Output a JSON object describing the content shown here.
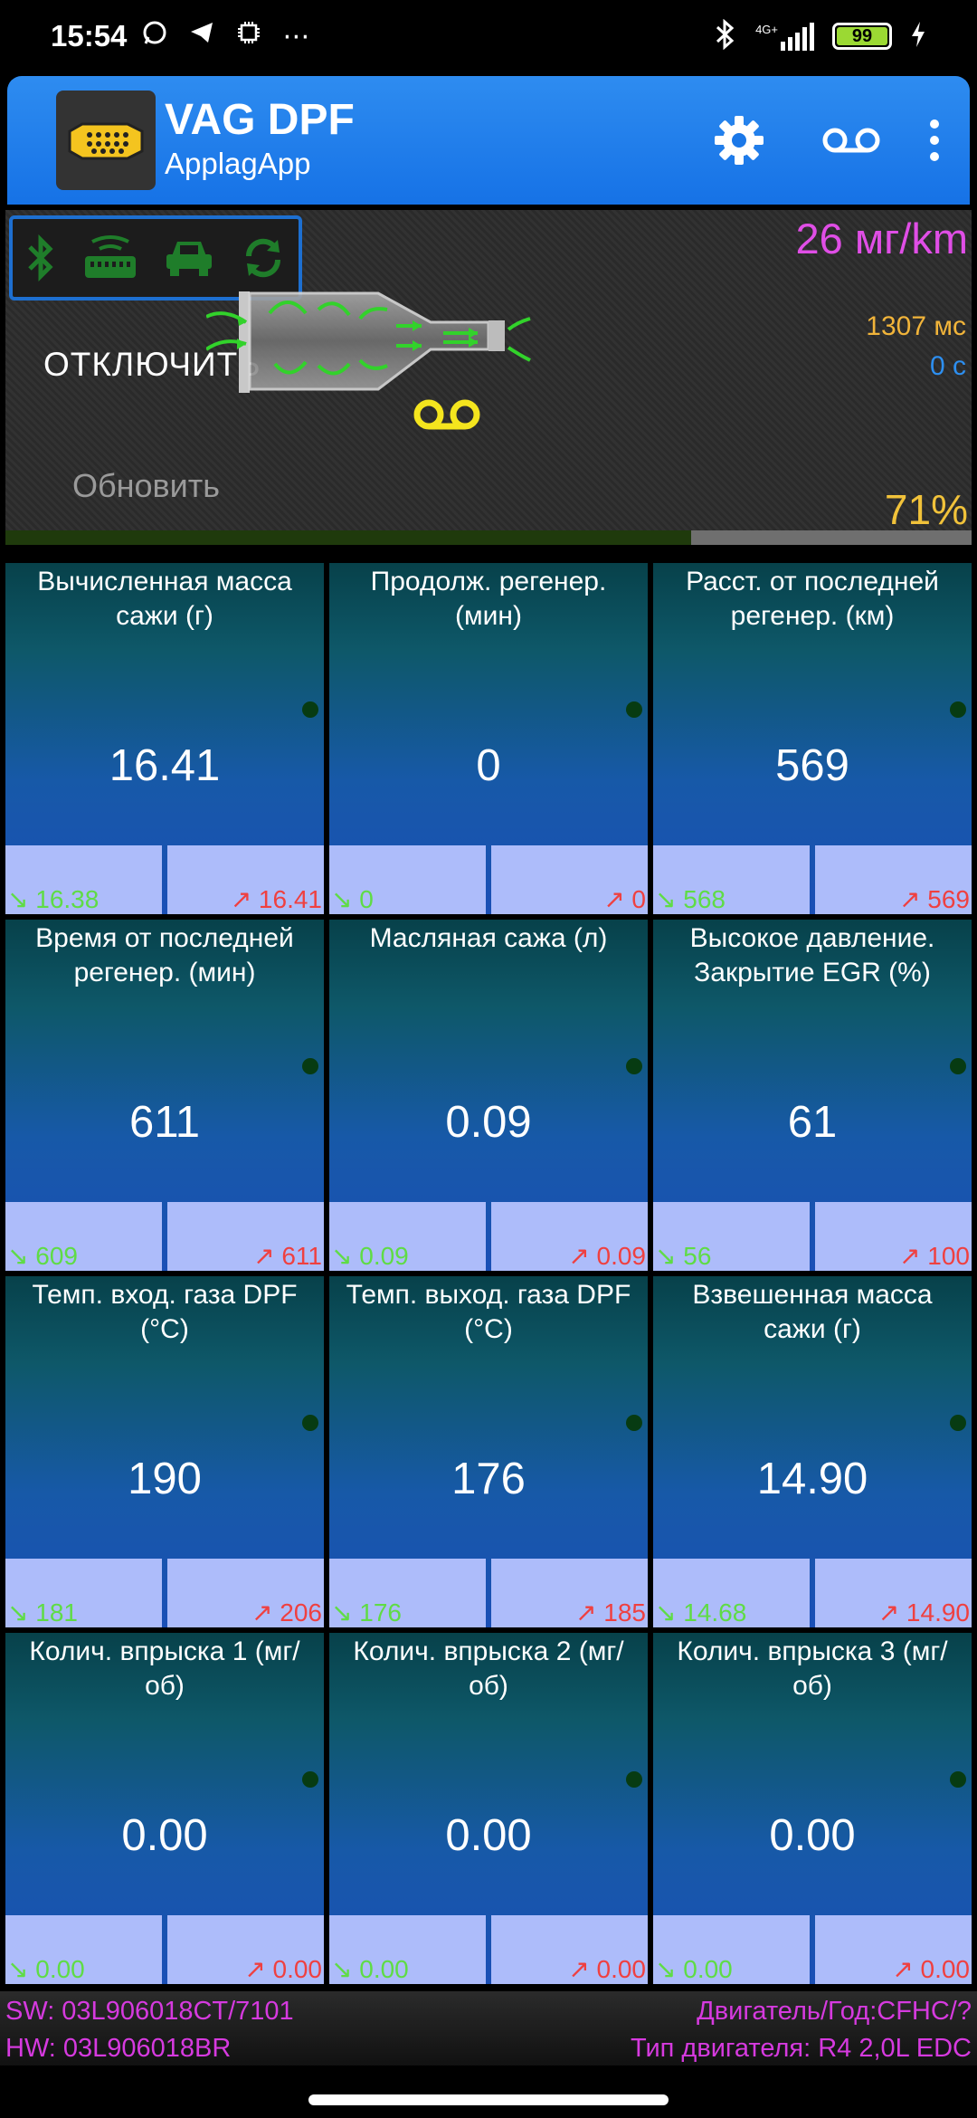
{
  "status": {
    "time": "15:54",
    "network": "4G+",
    "battery": "99"
  },
  "app": {
    "title": "VAG DPF",
    "subtitle": "ApplagApp"
  },
  "hero": {
    "disconnect": "ОТКЛЮЧИТЬ",
    "refresh": "Обновить",
    "soot_rate": "26 мг/km",
    "latency": "1307 мс",
    "seconds": "0 с",
    "percent": "71%",
    "progress": 0.71
  },
  "tiles": [
    {
      "label": "Вычисленная масса сажи (г)",
      "value": "16.41",
      "min": "16.38",
      "max": "16.41"
    },
    {
      "label": "Продолж. регенер. (мин)",
      "value": "0",
      "min": "0",
      "max": "0"
    },
    {
      "label": "Расст. от последней регенер. (км)",
      "value": "569",
      "min": "568",
      "max": "569"
    },
    {
      "label": "Время от последней регенер. (мин)",
      "value": "611",
      "min": "609",
      "max": "611"
    },
    {
      "label": "Масляная сажа (л)",
      "value": "0.09",
      "min": "0.09",
      "max": "0.09"
    },
    {
      "label": "Высокое давление. Закрытие EGR (%)",
      "value": "61",
      "min": "56",
      "max": "100"
    },
    {
      "label": "Темп. вход. газа DPF (°C)",
      "value": "190",
      "min": "181",
      "max": "206"
    },
    {
      "label": "Темп. выход. газа DPF (°C)",
      "value": "176",
      "min": "176",
      "max": "185"
    },
    {
      "label": "Взвешенная масса сажи (г)",
      "value": "14.90",
      "min": "14.68",
      "max": "14.90"
    },
    {
      "label": "Колич. впрыска 1 (мг/об)",
      "value": "0.00",
      "min": "0.00",
      "max": "0.00"
    },
    {
      "label": "Колич. впрыска 2 (мг/об)",
      "value": "0.00",
      "min": "0.00",
      "max": "0.00"
    },
    {
      "label": "Колич. впрыска 3 (мг/об)",
      "value": "0.00",
      "min": "0.00",
      "max": "0.00"
    }
  ],
  "footer": {
    "sw": "SW: 03L906018CT/7101",
    "hw": "HW: 03L906018BR",
    "engine": "Двигатель/Год:CFHC/?",
    "engine_type": "Тип двигателя: R4 2,0L EDC"
  },
  "colors": {
    "accent": "#1672e6",
    "min": "#5fdc45",
    "max": "#ef4040",
    "soot": "#e04ee6"
  }
}
